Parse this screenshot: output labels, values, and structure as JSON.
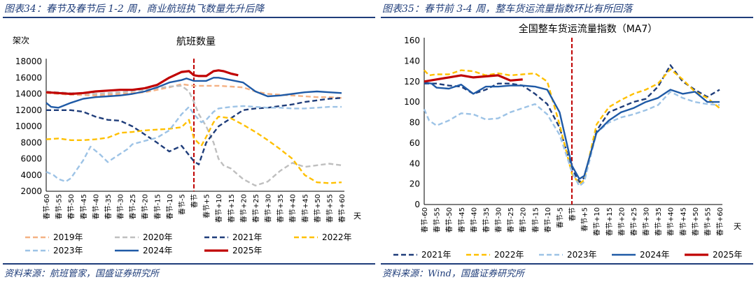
{
  "panels": [
    {
      "caption": "图表34：春节及春节后 1-2 周，商业航班执飞数量先升后降",
      "source": "资料来源：航班管家，国盛证券研究所"
    },
    {
      "caption": "图表35：春节前 3-4 周，整车货运流量指数环比有所回落",
      "source": "资料来源：Wind，国盛证券研究所"
    }
  ],
  "chart_data": [
    {
      "type": "line",
      "title": "航班数量",
      "ylabel": "架次",
      "xunit": "天",
      "ylim": [
        2000,
        18000
      ],
      "yticks": [
        2000,
        4000,
        6000,
        8000,
        10000,
        12000,
        14000,
        16000,
        18000
      ],
      "x_range": [
        -60,
        60
      ],
      "categories": [
        "春节-60",
        "春节-55",
        "春节-50",
        "春节-45",
        "春节-40",
        "春节-35",
        "春节-30",
        "春节-25",
        "春节-20",
        "春节-15",
        "春节-10",
        "春节-5",
        "春节",
        "春节+5",
        "春节+10",
        "春节+15",
        "春节+20",
        "春节+25",
        "春节+30",
        "春节+35",
        "春节+40",
        "春节+45",
        "春节+50",
        "春节+55",
        "春节+60"
      ],
      "spring_festival_marker": 0,
      "legend_position": "bottom",
      "series": [
        {
          "name": "2019年",
          "color": "#f4b183",
          "dash": "dash",
          "x": [
            -60,
            -50,
            -40,
            -30,
            -20,
            -10,
            -5,
            0,
            5,
            10,
            15,
            20,
            25,
            30,
            35,
            40,
            45,
            50,
            55,
            60
          ],
          "values": [
            14100,
            13900,
            13800,
            14000,
            14200,
            14800,
            15200,
            15000,
            15000,
            15000,
            14900,
            14800,
            14300,
            14000,
            13900,
            13800,
            13700,
            13600,
            13600,
            13500
          ]
        },
        {
          "name": "2020年",
          "color": "#bfbfbf",
          "dash": "dash",
          "x": [
            -60,
            -50,
            -40,
            -30,
            -20,
            -10,
            -5,
            -2,
            0,
            2,
            5,
            8,
            10,
            12,
            15,
            20,
            25,
            30,
            35,
            40,
            45,
            50,
            55,
            60
          ],
          "values": [
            14300,
            14100,
            14000,
            14200,
            14500,
            14900,
            15000,
            14300,
            13000,
            11500,
            10000,
            8000,
            6000,
            5200,
            4800,
            3500,
            2700,
            3200,
            4500,
            5500,
            5000,
            5200,
            5400,
            5200
          ]
        },
        {
          "name": "2021年",
          "color": "#1f3d7a",
          "dash": "dash",
          "x": [
            -60,
            -50,
            -45,
            -40,
            -35,
            -30,
            -25,
            -20,
            -15,
            -10,
            -5,
            0,
            2,
            5,
            10,
            15,
            20,
            25,
            30,
            35,
            40,
            45,
            50,
            55,
            60
          ],
          "values": [
            12000,
            12000,
            11800,
            11200,
            10800,
            10700,
            10000,
            9000,
            8000,
            6900,
            7600,
            5700,
            5300,
            8000,
            10000,
            11000,
            12000,
            12200,
            12300,
            12500,
            12700,
            13000,
            13200,
            13400,
            13500
          ]
        },
        {
          "name": "2022年",
          "color": "#ffc000",
          "dash": "dash",
          "x": [
            -60,
            -55,
            -50,
            -45,
            -40,
            -35,
            -30,
            -25,
            -20,
            -15,
            -10,
            -5,
            -2,
            0,
            3,
            5,
            8,
            10,
            15,
            20,
            25,
            30,
            35,
            40,
            45,
            50,
            55,
            60
          ],
          "values": [
            8400,
            8500,
            8300,
            8300,
            8400,
            8600,
            9200,
            9300,
            9500,
            9600,
            9700,
            9900,
            10800,
            8500,
            7600,
            8700,
            10500,
            11200,
            11000,
            10200,
            9300,
            8300,
            7200,
            6000,
            4000,
            3100,
            3000,
            3100
          ]
        },
        {
          "name": "2023年",
          "color": "#9dc3e6",
          "dash": "dash",
          "x": [
            -60,
            -57,
            -55,
            -52,
            -50,
            -45,
            -42,
            -38,
            -35,
            -30,
            -27,
            -25,
            -20,
            -15,
            -10,
            -5,
            -2,
            0,
            3,
            5,
            8,
            10,
            15,
            20,
            25,
            30,
            35,
            40,
            45,
            50,
            55,
            60
          ],
          "values": [
            4400,
            4000,
            3500,
            3200,
            3600,
            5800,
            7500,
            6500,
            5600,
            6600,
            7200,
            7800,
            8200,
            8600,
            9500,
            11500,
            12400,
            11500,
            10500,
            10800,
            11800,
            12200,
            12400,
            12500,
            12400,
            12300,
            12300,
            12200,
            12200,
            12300,
            12400,
            12400
          ]
        },
        {
          "name": "2024年",
          "color": "#1f5aa6",
          "dash": "solid",
          "x": [
            -60,
            -58,
            -55,
            -50,
            -45,
            -40,
            -35,
            -30,
            -25,
            -20,
            -15,
            -10,
            -5,
            -3,
            0,
            2,
            5,
            8,
            10,
            15,
            20,
            25,
            30,
            35,
            40,
            45,
            50,
            55,
            60
          ],
          "values": [
            12900,
            12400,
            12300,
            12900,
            13400,
            13600,
            13700,
            13800,
            14000,
            14300,
            14800,
            15400,
            15700,
            15900,
            15600,
            15600,
            15600,
            16000,
            16000,
            15700,
            15400,
            14300,
            13700,
            13800,
            14000,
            14200,
            14300,
            14200,
            14100
          ]
        },
        {
          "name": "2025年",
          "color": "#c00000",
          "dash": "solid",
          "x": [
            -60,
            -55,
            -50,
            -45,
            -40,
            -35,
            -30,
            -25,
            -20,
            -15,
            -10,
            -5,
            -2,
            0,
            2,
            5,
            8,
            10,
            12,
            15,
            18
          ],
          "values": [
            14200,
            14100,
            14000,
            14100,
            14300,
            14400,
            14500,
            14500,
            14700,
            15100,
            16000,
            16700,
            16800,
            16300,
            16200,
            16200,
            16800,
            16900,
            16800,
            16500,
            16300
          ]
        }
      ]
    },
    {
      "type": "line",
      "title": "全国整车货运流量指数（MA7）",
      "xunit": "天",
      "ylim": [
        0,
        160
      ],
      "yticks": [
        0,
        20,
        40,
        60,
        80,
        100,
        120,
        140,
        160
      ],
      "x_range": [
        -60,
        60
      ],
      "categories": [
        "春节-60",
        "春节-55",
        "春节-50",
        "春节-45",
        "春节-40",
        "春节-35",
        "春节-30",
        "春节-25",
        "春节-20",
        "春节-15",
        "春节-10",
        "春节-5",
        "春节",
        "春节+5",
        "春节+10",
        "春节+15",
        "春节+20",
        "春节+25",
        "春节+30",
        "春节+35",
        "春节+40",
        "春节+45",
        "春节+50",
        "春节+55",
        "春节+60"
      ],
      "spring_festival_marker": 0,
      "legend_position": "bottom",
      "series": [
        {
          "name": "2021年",
          "color": "#1f3d7a",
          "dash": "dash",
          "x": [
            -60,
            -55,
            -50,
            -45,
            -40,
            -35,
            -30,
            -25,
            -20,
            -15,
            -10,
            -5,
            0,
            3,
            5,
            10,
            15,
            20,
            25,
            30,
            35,
            40,
            45,
            50,
            55,
            60
          ],
          "values": [
            118,
            118,
            116,
            115,
            108,
            112,
            118,
            118,
            116,
            108,
            98,
            75,
            35,
            22,
            26,
            72,
            90,
            95,
            100,
            103,
            115,
            136,
            120,
            112,
            105,
            112
          ]
        },
        {
          "name": "2022年",
          "color": "#ffc000",
          "dash": "dash",
          "x": [
            -60,
            -58,
            -55,
            -50,
            -45,
            -40,
            -35,
            -30,
            -25,
            -20,
            -15,
            -10,
            -5,
            0,
            3,
            5,
            10,
            15,
            20,
            25,
            30,
            35,
            40,
            45,
            50,
            55,
            60
          ],
          "values": [
            131,
            126,
            127,
            127,
            131,
            130,
            126,
            128,
            126,
            127,
            128,
            120,
            78,
            30,
            20,
            24,
            78,
            95,
            102,
            108,
            112,
            118,
            132,
            122,
            110,
            104,
            94
          ]
        },
        {
          "name": "2023年",
          "color": "#9dc3e6",
          "dash": "dash",
          "x": [
            -60,
            -58,
            -55,
            -50,
            -45,
            -40,
            -35,
            -30,
            -25,
            -20,
            -15,
            -10,
            -5,
            0,
            3,
            5,
            10,
            15,
            20,
            25,
            30,
            35,
            40,
            45,
            50,
            55,
            60
          ],
          "values": [
            93,
            82,
            77,
            82,
            89,
            88,
            83,
            84,
            90,
            94,
            98,
            88,
            68,
            32,
            18,
            22,
            70,
            80,
            85,
            88,
            92,
            97,
            110,
            104,
            100,
            98,
            97
          ]
        },
        {
          "name": "2024年",
          "color": "#1f5aa6",
          "dash": "solid",
          "x": [
            -60,
            -57,
            -55,
            -50,
            -45,
            -40,
            -35,
            -30,
            -25,
            -20,
            -15,
            -10,
            -5,
            0,
            3,
            5,
            10,
            15,
            20,
            25,
            30,
            35,
            40,
            45,
            50,
            55,
            60
          ],
          "values": [
            119,
            118,
            114,
            113,
            117,
            108,
            115,
            115,
            116,
            116,
            115,
            112,
            90,
            38,
            25,
            28,
            70,
            82,
            90,
            94,
            100,
            104,
            112,
            108,
            110,
            100,
            100
          ]
        },
        {
          "name": "2025年",
          "color": "#c00000",
          "dash": "solid",
          "x": [
            -60,
            -55,
            -50,
            -45,
            -40,
            -35,
            -30,
            -25,
            -20
          ],
          "values": [
            120,
            122,
            124,
            126,
            124,
            125,
            126,
            121,
            122
          ]
        }
      ]
    }
  ]
}
